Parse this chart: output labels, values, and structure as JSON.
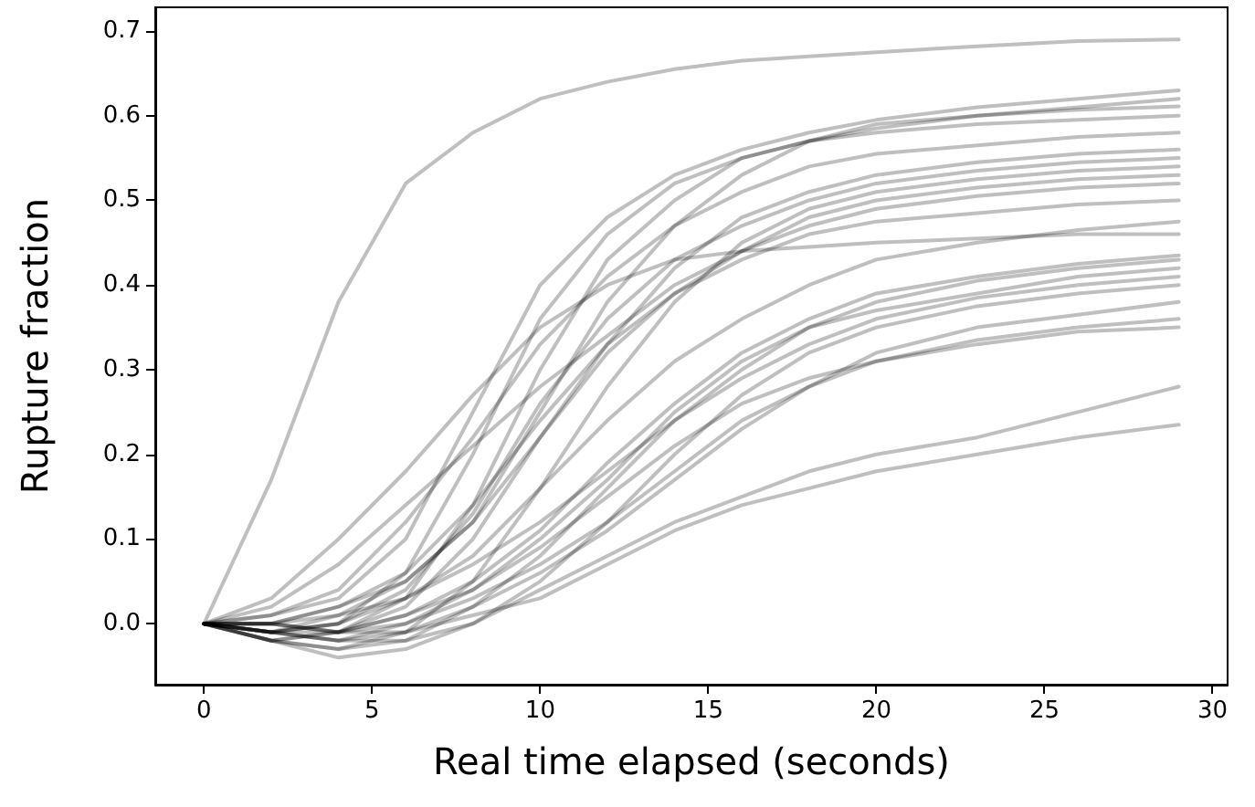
{
  "chart_data": {
    "type": "line",
    "xlabel": "Real time elapsed (seconds)",
    "ylabel": "Rupture fraction",
    "x": [
      0,
      2,
      4,
      6,
      8,
      10,
      12,
      14,
      16,
      18,
      20,
      23,
      26,
      29
    ],
    "xlim": [
      -1.45,
      30.45
    ],
    "xticks": [
      0,
      5,
      10,
      15,
      20,
      25,
      30
    ],
    "ylim": [
      -0.072,
      0.728
    ],
    "yticks": [
      {
        "value": 0,
        "label": "0.0"
      },
      {
        "value": 0.1,
        "label": "0.1"
      },
      {
        "value": 0.2,
        "label": "0.2"
      },
      {
        "value": 0.3,
        "label": "0.3"
      },
      {
        "value": 0.4,
        "label": "0.4"
      },
      {
        "value": 0.5,
        "label": "0.5"
      },
      {
        "value": 0.6,
        "label": "0.6"
      },
      {
        "value": 0.7,
        "label": "0.7"
      }
    ],
    "grid": false,
    "marker": "none",
    "line_style": "solid",
    "series": [
      {
        "color": "#000000",
        "values": [
          0,
          0.17,
          0.38,
          0.52,
          0.58,
          0.62,
          0.64,
          0.655,
          0.665,
          0.67,
          0.675,
          0.682,
          0.688,
          0.69
        ]
      },
      {
        "color": "#000000",
        "values": [
          0,
          0.01,
          0.03,
          0.1,
          0.25,
          0.4,
          0.48,
          0.53,
          0.56,
          0.58,
          0.595,
          0.61,
          0.62,
          0.63
        ]
      },
      {
        "color": "#000000",
        "values": [
          0,
          -0.01,
          0.0,
          0.06,
          0.2,
          0.36,
          0.46,
          0.52,
          0.55,
          0.57,
          0.585,
          0.6,
          0.61,
          0.62
        ]
      },
      {
        "color": "#000000",
        "values": [
          0,
          -0.02,
          -0.01,
          0.03,
          0.14,
          0.3,
          0.43,
          0.5,
          0.55,
          0.57,
          0.58,
          0.59,
          0.595,
          0.6
        ]
      },
      {
        "color": "#000000",
        "values": [
          0,
          0.0,
          0.02,
          0.05,
          0.12,
          0.25,
          0.38,
          0.47,
          0.53,
          0.57,
          0.59,
          0.6,
          0.607,
          0.611
        ]
      },
      {
        "color": "#000000",
        "values": [
          0,
          0.01,
          0.04,
          0.12,
          0.22,
          0.33,
          0.41,
          0.47,
          0.51,
          0.54,
          0.555,
          0.565,
          0.575,
          0.58
        ]
      },
      {
        "color": "#000000",
        "values": [
          0,
          -0.02,
          -0.01,
          0.02,
          0.1,
          0.22,
          0.33,
          0.42,
          0.48,
          0.51,
          0.53,
          0.545,
          0.555,
          0.56
        ]
      },
      {
        "color": "#000000",
        "values": [
          0,
          -0.01,
          0.0,
          0.04,
          0.13,
          0.26,
          0.36,
          0.43,
          0.47,
          0.5,
          0.52,
          0.535,
          0.545,
          0.55
        ]
      },
      {
        "color": "#000000",
        "values": [
          0,
          -0.02,
          -0.03,
          -0.01,
          0.05,
          0.16,
          0.28,
          0.38,
          0.45,
          0.49,
          0.51,
          0.525,
          0.535,
          0.54
        ]
      },
      {
        "color": "#000000",
        "values": [
          0,
          -0.01,
          0.01,
          0.05,
          0.12,
          0.22,
          0.32,
          0.39,
          0.44,
          0.48,
          0.5,
          0.515,
          0.525,
          0.53
        ]
      },
      {
        "color": "#000000",
        "values": [
          0,
          0.02,
          0.07,
          0.14,
          0.21,
          0.28,
          0.34,
          0.4,
          0.44,
          0.47,
          0.49,
          0.505,
          0.515,
          0.52
        ]
      },
      {
        "color": "#000000",
        "values": [
          0,
          0.0,
          0.02,
          0.06,
          0.14,
          0.24,
          0.33,
          0.39,
          0.43,
          0.46,
          0.475,
          0.485,
          0.495,
          0.5
        ]
      },
      {
        "color": "#000000",
        "values": [
          0,
          -0.01,
          0.0,
          0.03,
          0.08,
          0.16,
          0.24,
          0.31,
          0.36,
          0.4,
          0.43,
          0.45,
          0.465,
          0.475
        ]
      },
      {
        "color": "#000000",
        "values": [
          0,
          0.03,
          0.1,
          0.18,
          0.27,
          0.35,
          0.4,
          0.43,
          0.44,
          0.445,
          0.45,
          0.455,
          0.46,
          0.46
        ]
      },
      {
        "color": "#000000",
        "values": [
          0,
          0.0,
          -0.01,
          0.01,
          0.05,
          0.11,
          0.19,
          0.26,
          0.32,
          0.36,
          0.39,
          0.41,
          0.425,
          0.435
        ]
      },
      {
        "color": "#000000",
        "values": [
          0,
          -0.02,
          -0.03,
          -0.02,
          0.02,
          0.08,
          0.16,
          0.24,
          0.3,
          0.35,
          0.38,
          0.405,
          0.42,
          0.43
        ]
      },
      {
        "color": "#000000",
        "values": [
          0,
          -0.01,
          -0.02,
          0.0,
          0.04,
          0.1,
          0.17,
          0.25,
          0.31,
          0.35,
          0.37,
          0.39,
          0.41,
          0.42
        ]
      },
      {
        "color": "#000000",
        "values": [
          0,
          0.0,
          0.01,
          0.03,
          0.07,
          0.12,
          0.18,
          0.24,
          0.29,
          0.33,
          0.36,
          0.385,
          0.4,
          0.41
        ]
      },
      {
        "color": "#000000",
        "values": [
          0,
          -0.02,
          -0.04,
          -0.03,
          0.0,
          0.05,
          0.12,
          0.2,
          0.27,
          0.32,
          0.35,
          0.375,
          0.39,
          0.4
        ]
      },
      {
        "color": "#000000",
        "values": [
          0,
          -0.01,
          -0.02,
          -0.01,
          0.02,
          0.06,
          0.11,
          0.17,
          0.23,
          0.28,
          0.32,
          0.35,
          0.365,
          0.38
        ]
      },
      {
        "color": "#000000",
        "values": [
          0,
          0.0,
          -0.01,
          0.0,
          0.03,
          0.07,
          0.12,
          0.18,
          0.24,
          0.28,
          0.31,
          0.335,
          0.35,
          0.36
        ]
      },
      {
        "color": "#000000",
        "values": [
          0,
          -0.01,
          -0.01,
          0.01,
          0.04,
          0.09,
          0.15,
          0.21,
          0.26,
          0.29,
          0.31,
          0.33,
          0.345,
          0.35
        ]
      },
      {
        "color": "#000000",
        "values": [
          0,
          -0.01,
          -0.02,
          -0.02,
          0.0,
          0.04,
          0.08,
          0.12,
          0.15,
          0.18,
          0.2,
          0.22,
          0.25,
          0.28
        ]
      },
      {
        "color": "#000000",
        "values": [
          0,
          0.0,
          -0.01,
          -0.01,
          0.01,
          0.03,
          0.07,
          0.11,
          0.14,
          0.16,
          0.18,
          0.2,
          0.22,
          0.235
        ]
      }
    ]
  }
}
